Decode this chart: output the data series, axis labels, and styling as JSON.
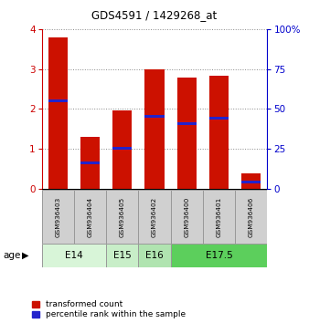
{
  "title": "GDS4591 / 1429268_at",
  "samples": [
    "GSM936403",
    "GSM936404",
    "GSM936405",
    "GSM936402",
    "GSM936400",
    "GSM936401",
    "GSM936406"
  ],
  "red_values": [
    3.78,
    1.3,
    1.97,
    3.0,
    2.78,
    2.83,
    0.4
  ],
  "blue_values": [
    2.2,
    0.65,
    1.02,
    1.82,
    1.63,
    1.78,
    0.18
  ],
  "age_groups": [
    {
      "label": "E14",
      "span": [
        0,
        2
      ],
      "color": "#d8f5d8"
    },
    {
      "label": "E15",
      "span": [
        2,
        3
      ],
      "color": "#c8eec8"
    },
    {
      "label": "E16",
      "span": [
        3,
        4
      ],
      "color": "#b0e4b0"
    },
    {
      "label": "E17.5",
      "span": [
        4,
        7
      ],
      "color": "#5ccf5c"
    }
  ],
  "ylim_left": [
    0,
    4
  ],
  "ylim_right": [
    0,
    100
  ],
  "yticks_left": [
    0,
    1,
    2,
    3,
    4
  ],
  "yticks_right": [
    0,
    25,
    50,
    75,
    100
  ],
  "yticklabels_right": [
    "0",
    "25",
    "50",
    "75",
    "100%"
  ],
  "left_tick_color": "#cc0000",
  "right_tick_color": "#0000cc",
  "bar_width": 0.6,
  "red_color": "#cc1100",
  "blue_color": "#2222cc",
  "legend_red": "transformed count",
  "legend_blue": "percentile rank within the sample",
  "age_label": "age",
  "gsm_box_color": "#d0d0d0",
  "background_color": "#ffffff"
}
